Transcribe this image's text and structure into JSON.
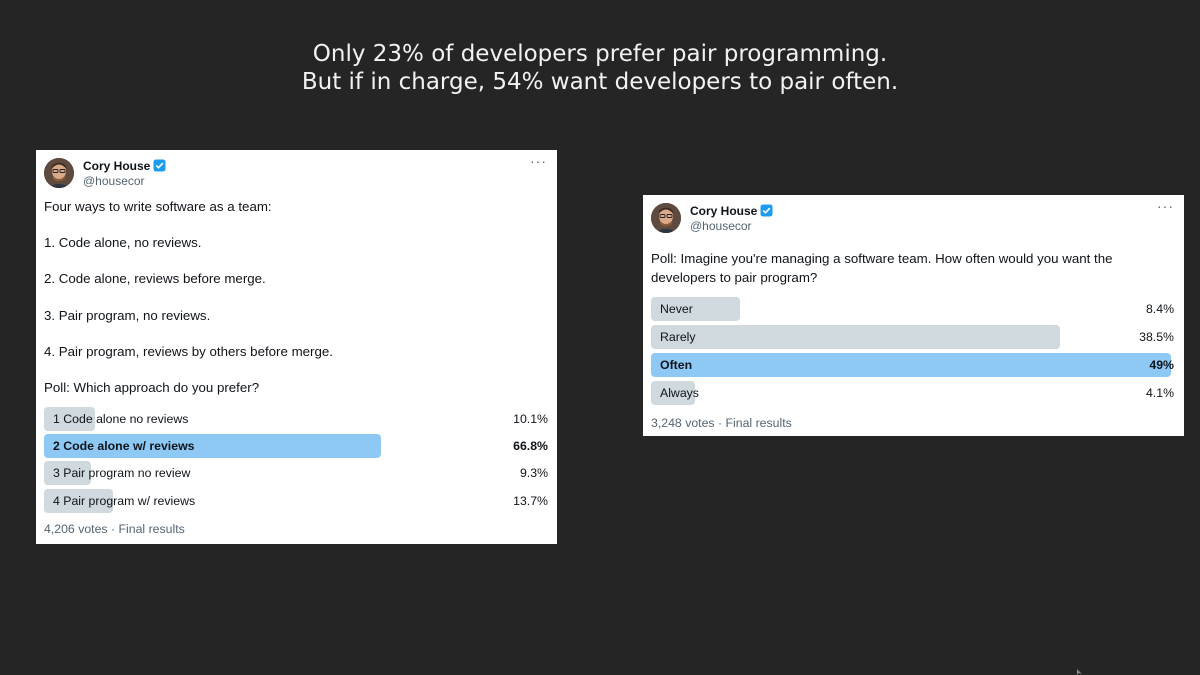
{
  "headline": {
    "line1": "Only 23% of developers prefer pair programming.",
    "line2": "But if in charge, 54% want developers to pair often."
  },
  "colors": {
    "background": "#252525",
    "poll_bar": "#cfd9de",
    "poll_bar_winner": "#8ec8f5",
    "verified_badge": "#1d9bf0"
  },
  "tweet1": {
    "author_name": "Cory House",
    "author_handle": "@housecor",
    "avatar_icon": "avatar-photo",
    "verified_icon": "verified-badge-icon",
    "more_icon": "more-options-icon",
    "more_label": "···",
    "text_lines": [
      "Four ways to write software as a team:",
      "1. Code alone, no reviews.",
      "2. Code alone, reviews before merge.",
      "3. Pair program, no reviews.",
      "4. Pair program, reviews by others before merge.",
      "Poll: Which approach do you prefer?"
    ],
    "poll_options": [
      {
        "label": "1 Code alone no reviews",
        "percent_text": "10.1%",
        "percent": 10.1,
        "winner": false
      },
      {
        "label": "2 Code alone w/ reviews",
        "percent_text": "66.8%",
        "percent": 66.8,
        "winner": true
      },
      {
        "label": "3 Pair program no review",
        "percent_text": "9.3%",
        "percent": 9.3,
        "winner": false
      },
      {
        "label": "4 Pair program w/ reviews",
        "percent_text": "13.7%",
        "percent": 13.7,
        "winner": false
      }
    ],
    "meta": "4,206 votes · Final results"
  },
  "tweet2": {
    "author_name": "Cory House",
    "author_handle": "@housecor",
    "avatar_icon": "avatar-photo",
    "verified_icon": "verified-badge-icon",
    "more_icon": "more-options-icon",
    "more_label": "···",
    "text_lines": [
      "Poll: Imagine you're managing a software team. How often would you want the",
      "developers to pair program?"
    ],
    "poll_options": [
      {
        "label": "Never",
        "percent_text": "8.4%",
        "percent": 8.4,
        "winner": false
      },
      {
        "label": "Rarely",
        "percent_text": "38.5%",
        "percent": 38.5,
        "winner": false
      },
      {
        "label": "Often",
        "percent_text": "49%",
        "percent": 49,
        "winner": true
      },
      {
        "label": "Always",
        "percent_text": "4.1%",
        "percent": 4.1,
        "winner": false
      }
    ],
    "meta": "3,248 votes · Final results"
  }
}
